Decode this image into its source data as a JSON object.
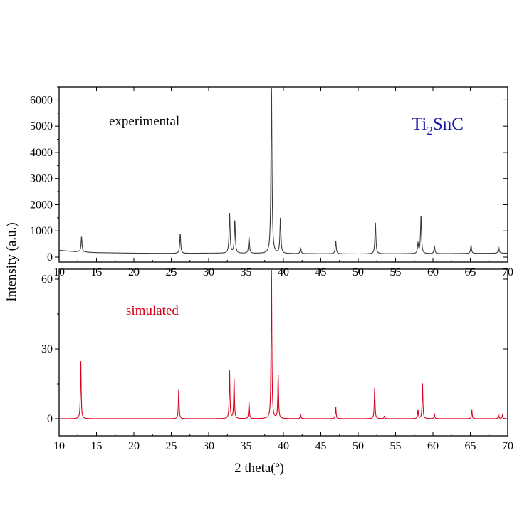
{
  "figure": {
    "ylabel": "Intensity (a.u.)",
    "xlabel": "2 theta(º)",
    "compound": {
      "main": "Ti",
      "sub": "2",
      "rest": "SnC"
    }
  },
  "colors": {
    "experimental": "#3a3a3a",
    "simulated": "#d9001b",
    "compound": "#1a1aa6",
    "axis": "#000000"
  },
  "chart_data": [
    {
      "type": "line",
      "panel": "top",
      "series_name": "experimental",
      "xlim": [
        10,
        70
      ],
      "ylim": [
        0,
        6500
      ],
      "xticks": [
        10,
        15,
        20,
        25,
        30,
        35,
        40,
        45,
        50,
        55,
        60,
        65,
        70
      ],
      "yticks": [
        0,
        1000,
        2000,
        3000,
        4000,
        5000,
        6000
      ],
      "baseline": [
        [
          10,
          260
        ],
        [
          12,
          210
        ],
        [
          15,
          170
        ],
        [
          20,
          150
        ],
        [
          25,
          140
        ],
        [
          30,
          150
        ],
        [
          35,
          140
        ],
        [
          40,
          130
        ],
        [
          45,
          130
        ],
        [
          50,
          120
        ],
        [
          55,
          130
        ],
        [
          60,
          130
        ],
        [
          65,
          140
        ],
        [
          70,
          150
        ]
      ],
      "peaks": [
        {
          "x": 13.0,
          "y": 560
        },
        {
          "x": 26.2,
          "y": 720
        },
        {
          "x": 32.8,
          "y": 1520
        },
        {
          "x": 33.5,
          "y": 1230
        },
        {
          "x": 35.4,
          "y": 600
        },
        {
          "x": 38.4,
          "y": 6500
        },
        {
          "x": 39.6,
          "y": 1340
        },
        {
          "x": 42.3,
          "y": 220
        },
        {
          "x": 47.0,
          "y": 470
        },
        {
          "x": 52.3,
          "y": 1170
        },
        {
          "x": 58.0,
          "y": 380
        },
        {
          "x": 58.4,
          "y": 1400
        },
        {
          "x": 60.2,
          "y": 280
        },
        {
          "x": 65.1,
          "y": 300
        },
        {
          "x": 68.8,
          "y": 240
        }
      ]
    },
    {
      "type": "line",
      "panel": "bottom",
      "series_name": "simulated",
      "xlim": [
        10,
        70
      ],
      "ylim": [
        -5,
        67
      ],
      "xticks": [
        10,
        15,
        20,
        25,
        30,
        35,
        40,
        45,
        50,
        55,
        60,
        65,
        70
      ],
      "yticks": [
        0,
        30,
        60
      ],
      "peaks": [
        {
          "x": 12.9,
          "y": 24.5
        },
        {
          "x": 26.0,
          "y": 12.5
        },
        {
          "x": 32.8,
          "y": 20.5
        },
        {
          "x": 33.4,
          "y": 17.0
        },
        {
          "x": 35.4,
          "y": 7.0
        },
        {
          "x": 38.4,
          "y": 67
        },
        {
          "x": 39.3,
          "y": 18.5
        },
        {
          "x": 42.3,
          "y": 2.0
        },
        {
          "x": 47.0,
          "y": 4.8
        },
        {
          "x": 52.2,
          "y": 13.0
        },
        {
          "x": 53.5,
          "y": 1.0
        },
        {
          "x": 58.0,
          "y": 3.5
        },
        {
          "x": 58.6,
          "y": 15.0
        },
        {
          "x": 60.2,
          "y": 2.0
        },
        {
          "x": 65.2,
          "y": 3.5
        },
        {
          "x": 68.8,
          "y": 1.8
        },
        {
          "x": 69.3,
          "y": 1.5
        }
      ]
    }
  ]
}
